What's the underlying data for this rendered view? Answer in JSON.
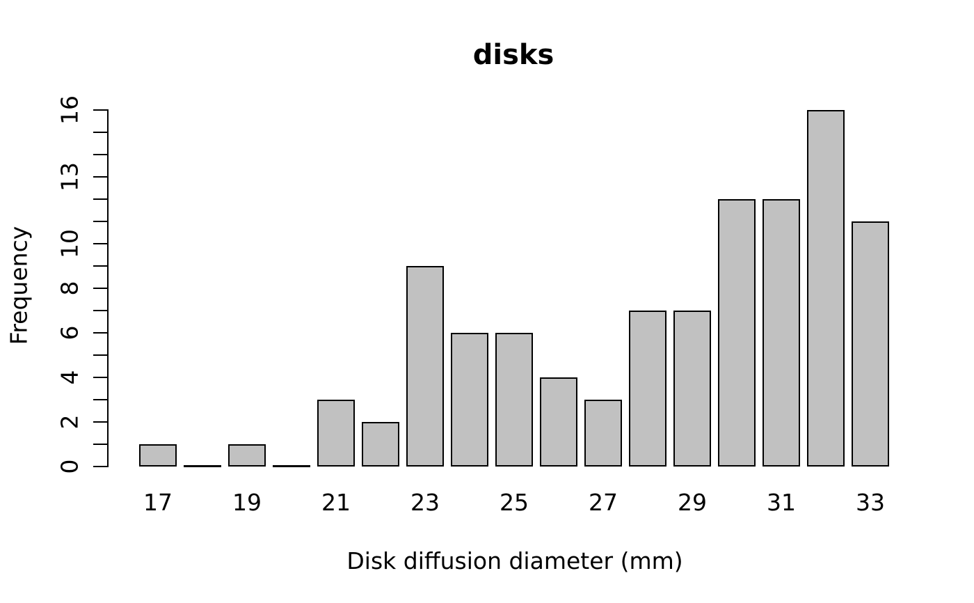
{
  "chart_data": {
    "type": "bar",
    "title": "disks",
    "xlabel": "Disk diffusion diameter (mm)",
    "ylabel": "Frequency",
    "categories": [
      17,
      18,
      19,
      20,
      21,
      22,
      23,
      24,
      25,
      26,
      27,
      28,
      29,
      30,
      31,
      32,
      33
    ],
    "values": [
      1,
      0,
      1,
      0,
      3,
      2,
      9,
      6,
      6,
      4,
      3,
      7,
      7,
      12,
      12,
      16,
      11
    ],
    "x_axis": {
      "tick_labels": [
        "17",
        "19",
        "21",
        "23",
        "25",
        "27",
        "29",
        "31",
        "33"
      ],
      "tick_label_values": [
        17,
        19,
        21,
        23,
        25,
        27,
        29,
        31,
        33
      ]
    },
    "y_axis": {
      "tick_labels": [
        "0",
        "2",
        "4",
        "6",
        "8",
        "10",
        "13",
        "16"
      ],
      "tick_label_values": [
        0,
        2,
        4,
        6,
        8,
        10,
        13,
        16
      ],
      "tick_step": 1,
      "range": [
        0,
        16
      ]
    },
    "ylim": [
      0,
      16
    ],
    "grid": false,
    "legend": null,
    "colors": {
      "bar_fill": "#c1c1c1",
      "bar_border": "#000000",
      "axis": "#000000",
      "text": "#000000",
      "background": "#ffffff"
    }
  }
}
